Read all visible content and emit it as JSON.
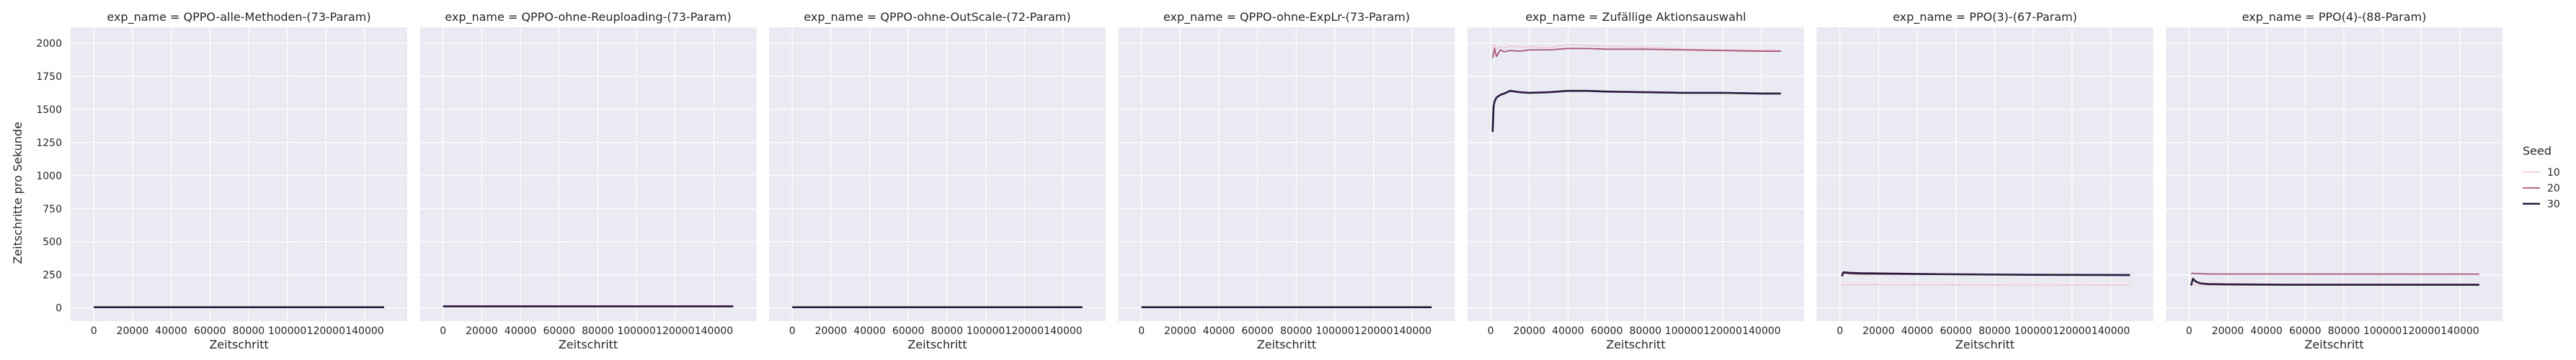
{
  "chart_data": {
    "type": "line",
    "xlabel": "Zeitschritt",
    "ylabel": "Zeitschritte pro Sekunde",
    "xlim": [
      -12000,
      162000
    ],
    "ylim": [
      -100,
      2120
    ],
    "x_ticks": [
      0,
      20000,
      40000,
      60000,
      80000,
      100000,
      120000,
      140000
    ],
    "y_ticks": [
      0,
      250,
      500,
      750,
      1000,
      1250,
      1500,
      1750,
      2000
    ],
    "grid": true,
    "legend": {
      "title": "Seed",
      "placement": "right",
      "entries": [
        {
          "label": "10",
          "color": "#f0c6cc"
        },
        {
          "label": "20",
          "color": "#a8537c"
        },
        {
          "label": "30",
          "color": "#2a1a3e"
        }
      ]
    },
    "panels": [
      {
        "title": "exp_name = QPPO-alle-Methoden-(73-Param)",
        "series": [
          {
            "seed": "10",
            "x": [
              0,
              150000
            ],
            "y": [
              6,
              6
            ]
          },
          {
            "seed": "20",
            "x": [
              0,
              150000
            ],
            "y": [
              7,
              7
            ]
          },
          {
            "seed": "30",
            "x": [
              0,
              150000
            ],
            "y": [
              5,
              5
            ]
          }
        ]
      },
      {
        "title": "exp_name = QPPO-ohne-Reuploading-(73-Param)",
        "series": [
          {
            "seed": "10",
            "x": [
              0,
              150000
            ],
            "y": [
              12,
              12
            ]
          },
          {
            "seed": "20",
            "x": [
              0,
              150000
            ],
            "y": [
              14,
              14
            ]
          },
          {
            "seed": "30",
            "x": [
              0,
              150000
            ],
            "y": [
              11,
              11
            ]
          }
        ]
      },
      {
        "title": "exp_name = QPPO-ohne-OutScale-(72-Param)",
        "series": [
          {
            "seed": "10",
            "x": [
              0,
              150000
            ],
            "y": [
              6,
              6
            ]
          },
          {
            "seed": "20",
            "x": [
              0,
              150000
            ],
            "y": [
              7,
              7
            ]
          },
          {
            "seed": "30",
            "x": [
              0,
              150000
            ],
            "y": [
              5,
              5
            ]
          }
        ]
      },
      {
        "title": "exp_name = QPPO-ohne-ExpLr-(73-Param)",
        "series": [
          {
            "seed": "10",
            "x": [
              0,
              150000
            ],
            "y": [
              6,
              6
            ]
          },
          {
            "seed": "20",
            "x": [
              0,
              150000
            ],
            "y": [
              7,
              7
            ]
          },
          {
            "seed": "30",
            "x": [
              0,
              150000
            ],
            "y": [
              5,
              5
            ]
          }
        ]
      },
      {
        "title": "exp_name = Zufällige Aktionsauswahl",
        "series": [
          {
            "seed": "10",
            "x": [
              1000,
              2000,
              3000,
              5000,
              7000,
              10000,
              15000,
              20000,
              30000,
              40000,
              50000,
              60000,
              80000,
              100000,
              120000,
              140000,
              150000
            ],
            "y": [
              1960,
              1990,
              1950,
              1975,
              1960,
              1980,
              1970,
              1975,
              1965,
              1990,
              1985,
              1975,
              1970,
              1955,
              1950,
              1945,
              1945
            ]
          },
          {
            "seed": "20",
            "x": [
              1000,
              2000,
              3000,
              5000,
              7000,
              10000,
              15000,
              20000,
              30000,
              40000,
              50000,
              60000,
              80000,
              100000,
              120000,
              140000,
              150000
            ],
            "y": [
              1890,
              1960,
              1900,
              1950,
              1935,
              1945,
              1940,
              1950,
              1950,
              1960,
              1960,
              1955,
              1955,
              1950,
              1945,
              1940,
              1940
            ]
          },
          {
            "seed": "30",
            "x": [
              1000,
              1500,
              2000,
              3000,
              4000,
              5000,
              7000,
              10000,
              15000,
              20000,
              30000,
              40000,
              50000,
              60000,
              80000,
              100000,
              120000,
              140000,
              150000
            ],
            "y": [
              1330,
              1520,
              1560,
              1590,
              1600,
              1610,
              1620,
              1640,
              1630,
              1625,
              1630,
              1640,
              1640,
              1635,
              1630,
              1625,
              1625,
              1620,
              1620
            ]
          }
        ]
      },
      {
        "title": "exp_name = PPO(3)-(67-Param)",
        "series": [
          {
            "seed": "10",
            "x": [
              1000,
              2000,
              3000,
              150000
            ],
            "y": [
              180,
              170,
              175,
              172
            ]
          },
          {
            "seed": "20",
            "x": [
              1000,
              2000,
              3000,
              5000,
              10000,
              150000
            ],
            "y": [
              260,
              270,
              262,
              258,
              255,
              250
            ]
          },
          {
            "seed": "30",
            "x": [
              1000,
              2000,
              3000,
              5000,
              10000,
              50000,
              100000,
              150000
            ],
            "y": [
              240,
              270,
              268,
              265,
              262,
              255,
              250,
              248
            ]
          }
        ]
      },
      {
        "title": "exp_name = PPO(4)-(88-Param)",
        "series": [
          {
            "seed": "10",
            "x": [
              1000,
              2000,
              3000,
              150000
            ],
            "y": [
              180,
              175,
              172,
              170
            ]
          },
          {
            "seed": "20",
            "x": [
              1000,
              2000,
              3000,
              5000,
              10000,
              150000
            ],
            "y": [
              258,
              262,
              260,
              258,
              256,
              255
            ]
          },
          {
            "seed": "30",
            "x": [
              1000,
              2000,
              3000,
              4000,
              6000,
              10000,
              20000,
              50000,
              100000,
              150000
            ],
            "y": [
              170,
              220,
              205,
              195,
              185,
              180,
              178,
              175,
              175,
              175
            ]
          }
        ]
      }
    ]
  }
}
